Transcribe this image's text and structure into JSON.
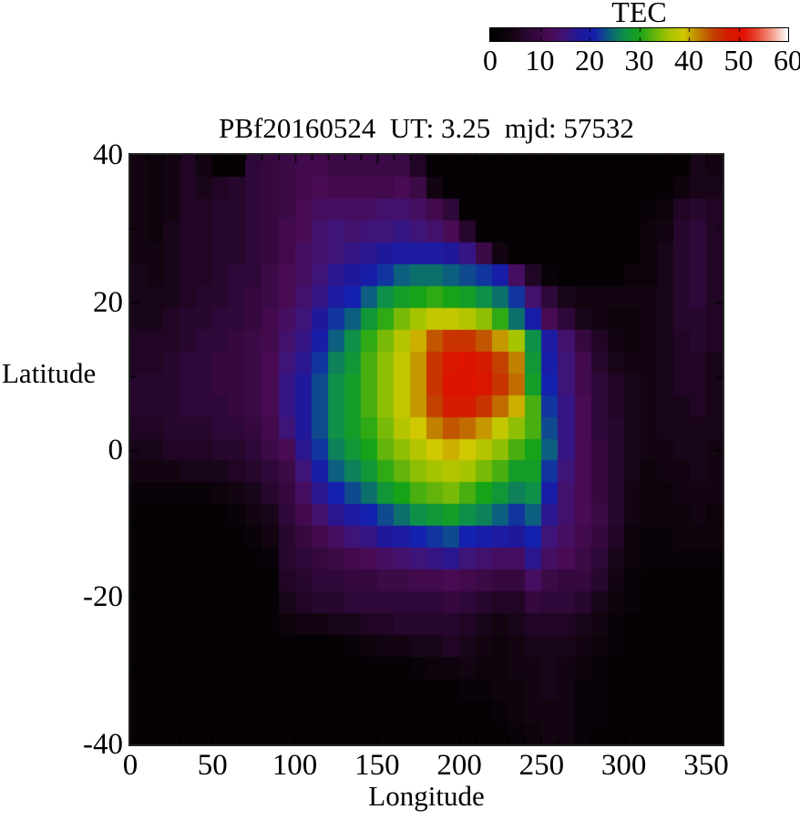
{
  "page": {
    "background": "#ffffff",
    "text_color": "#000000"
  },
  "title": "PBf20160524  UT: 3.25  mjd: 57532",
  "colorbar": {
    "label": "TEC",
    "min": 0,
    "max": 60,
    "tick_labels": [
      "0",
      "10",
      "20",
      "30",
      "40",
      "50",
      "60"
    ],
    "tick_values": [
      0,
      10,
      20,
      30,
      40,
      50,
      60
    ],
    "border_color": "#000000"
  },
  "axes": {
    "x_label": "Longitude",
    "y_label": "Latitude",
    "x_tick_labels": [
      "0",
      "50",
      "100",
      "150",
      "200",
      "250",
      "300",
      "350"
    ],
    "x_tick_values": [
      0,
      50,
      100,
      150,
      200,
      250,
      300,
      350
    ],
    "y_tick_labels": [
      "40",
      "20",
      "0",
      "-20",
      "-40"
    ],
    "y_tick_values": [
      40,
      20,
      0,
      -20,
      -40
    ],
    "x_range": [
      0,
      360
    ],
    "y_range": [
      -40,
      40
    ],
    "border_color": "#242424",
    "tick_color": "#000000"
  },
  "chart_data": {
    "type": "heatmap",
    "title": "PBf20160524  UT: 3.25  mjd: 57532",
    "xlabel": "Longitude",
    "ylabel": "Latitude",
    "value_label": "TEC",
    "value_range": [
      0,
      60
    ],
    "x_range": [
      0,
      360
    ],
    "y_range": [
      -40,
      40
    ],
    "grid_cols": 36,
    "grid_rows": 27,
    "row_order": "north-to-south (lat +40 at top to -40 at bottom), 10 deg per column, ~3 deg per row",
    "values": [
      [
        4,
        3,
        4,
        6,
        4,
        1,
        1,
        8,
        9,
        10,
        11,
        11,
        10,
        10,
        10,
        10,
        10,
        6,
        1,
        1,
        1,
        1,
        1,
        1,
        1,
        1,
        1,
        1,
        1,
        1,
        1,
        1,
        1,
        1,
        5,
        4
      ],
      [
        4,
        3,
        4,
        6,
        5,
        6,
        7,
        8,
        9,
        10,
        11,
        12,
        11,
        11,
        11,
        11,
        12,
        10,
        4,
        1,
        1,
        1,
        1,
        1,
        1,
        1,
        1,
        1,
        1,
        1,
        1,
        1,
        1,
        3,
        5,
        5
      ],
      [
        4,
        3,
        4,
        6,
        6,
        7,
        7,
        8,
        9,
        10,
        12,
        13,
        13,
        13,
        13,
        14,
        14,
        13,
        11,
        8,
        1,
        1,
        1,
        1,
        1,
        1,
        1,
        1,
        1,
        1,
        1,
        2,
        3,
        6,
        7,
        6
      ],
      [
        4,
        3,
        5,
        6,
        6,
        7,
        7,
        8,
        9,
        11,
        12,
        14,
        15,
        14,
        15,
        15,
        16,
        15,
        14,
        12,
        7,
        1,
        1,
        1,
        1,
        1,
        1,
        1,
        1,
        1,
        1,
        3,
        4,
        7,
        8,
        6
      ],
      [
        4,
        4,
        5,
        6,
        6,
        7,
        7,
        8,
        9,
        11,
        13,
        14,
        15,
        16,
        17,
        18,
        19,
        19,
        19,
        18,
        16,
        10,
        4,
        1,
        1,
        1,
        1,
        1,
        1,
        1,
        1,
        3,
        5,
        7,
        8,
        6
      ],
      [
        5,
        4,
        5,
        6,
        6,
        7,
        8,
        8,
        10,
        12,
        13,
        15,
        17,
        18,
        20,
        22,
        24,
        25,
        25,
        24,
        23,
        22,
        20,
        13,
        6,
        2,
        1,
        1,
        1,
        1,
        3,
        3,
        5,
        7,
        8,
        6
      ],
      [
        5,
        5,
        5,
        6,
        7,
        7,
        8,
        9,
        10,
        12,
        14,
        16,
        19,
        21,
        24,
        27,
        29,
        30,
        31,
        30,
        29,
        27,
        25,
        22,
        14,
        8,
        5,
        4,
        4,
        4,
        4,
        4,
        5,
        7,
        8,
        6
      ],
      [
        5,
        5,
        6,
        7,
        7,
        8,
        8,
        9,
        11,
        13,
        15,
        18,
        22,
        24,
        28,
        31,
        34,
        36,
        38,
        38,
        37,
        35,
        31,
        25,
        20,
        12,
        8,
        5,
        4,
        3,
        3,
        4,
        5,
        7,
        7,
        6
      ],
      [
        6,
        6,
        6,
        7,
        8,
        8,
        9,
        10,
        11,
        14,
        16,
        20,
        24,
        27,
        31,
        34,
        37,
        40,
        44,
        46,
        46,
        44,
        41,
        36,
        27,
        19,
        14,
        9,
        6,
        4,
        3,
        4,
        5,
        6,
        7,
        6
      ],
      [
        6,
        6,
        7,
        8,
        8,
        9,
        9,
        10,
        12,
        15,
        17,
        22,
        26,
        28,
        32,
        35,
        38,
        41,
        46,
        49,
        50,
        48,
        45,
        42,
        28,
        20,
        15,
        11,
        7,
        5,
        4,
        4,
        5,
        6,
        6,
        5
      ],
      [
        7,
        7,
        7,
        8,
        8,
        9,
        9,
        10,
        12,
        16,
        18,
        23,
        27,
        29,
        32,
        35,
        38,
        41,
        46,
        50,
        50,
        49,
        46,
        43,
        29,
        21,
        15,
        11,
        8,
        6,
        5,
        4,
        5,
        6,
        6,
        5
      ],
      [
        7,
        7,
        7,
        8,
        8,
        8,
        9,
        10,
        12,
        16,
        18,
        23,
        27,
        29,
        32,
        35,
        38,
        41,
        45,
        48,
        48,
        46,
        43,
        40,
        32,
        22,
        16,
        12,
        8,
        6,
        5,
        4,
        5,
        5,
        6,
        5
      ],
      [
        6,
        6,
        7,
        7,
        7,
        8,
        8,
        9,
        11,
        15,
        18,
        23,
        27,
        29,
        31,
        34,
        37,
        39,
        42,
        44,
        43,
        41,
        38,
        35,
        32,
        23,
        16,
        12,
        8,
        7,
        5,
        4,
        5,
        5,
        5,
        5
      ],
      [
        5,
        5,
        6,
        6,
        6,
        7,
        7,
        8,
        10,
        12,
        17,
        22,
        26,
        28,
        30,
        33,
        35,
        37,
        39,
        40,
        39,
        37,
        35,
        32,
        30,
        24,
        16,
        12,
        9,
        7,
        5,
        4,
        4,
        5,
        5,
        4
      ],
      [
        4,
        4,
        4,
        5,
        5,
        5,
        6,
        7,
        8,
        10,
        15,
        20,
        24,
        26,
        28,
        31,
        33,
        35,
        36,
        37,
        36,
        34,
        32,
        29,
        29,
        22,
        15,
        12,
        9,
        7,
        5,
        3,
        4,
        4,
        5,
        4
      ],
      [
        2,
        2,
        2,
        2,
        2,
        3,
        4,
        5,
        7,
        9,
        13,
        17,
        21,
        23,
        25,
        28,
        30,
        32,
        33,
        34,
        32,
        30,
        28,
        26,
        27,
        20,
        14,
        12,
        9,
        7,
        4,
        3,
        3,
        4,
        4,
        4
      ],
      [
        1,
        1,
        1,
        1,
        1,
        1,
        2,
        4,
        5,
        8,
        11,
        14,
        17,
        19,
        21,
        23,
        25,
        27,
        28,
        29,
        27,
        26,
        24,
        22,
        24,
        17,
        14,
        12,
        10,
        7,
        4,
        3,
        3,
        3,
        4,
        3
      ],
      [
        1,
        1,
        1,
        1,
        1,
        1,
        1,
        2,
        4,
        7,
        9,
        11,
        13,
        15,
        16,
        18,
        19,
        21,
        22,
        23,
        21,
        20,
        19,
        18,
        21,
        15,
        13,
        11,
        9,
        6,
        3,
        2,
        2,
        3,
        3,
        3
      ],
      [
        1,
        1,
        1,
        1,
        1,
        1,
        1,
        1,
        2,
        7,
        8,
        9,
        10,
        11,
        12,
        13,
        14,
        15,
        16,
        17,
        15,
        14,
        13,
        13,
        17,
        13,
        12,
        10,
        8,
        5,
        3,
        2,
        2,
        2,
        2,
        2
      ],
      [
        1,
        1,
        1,
        1,
        1,
        1,
        1,
        1,
        1,
        6,
        7,
        8,
        8,
        9,
        9,
        10,
        10,
        11,
        11,
        12,
        11,
        10,
        9,
        9,
        13,
        10,
        9,
        9,
        7,
        4,
        2,
        1,
        1,
        1,
        1,
        1
      ],
      [
        1,
        1,
        1,
        1,
        1,
        1,
        1,
        1,
        1,
        5,
        6,
        7,
        7,
        8,
        8,
        8,
        8,
        8,
        8,
        9,
        8,
        7,
        6,
        6,
        9,
        8,
        8,
        7,
        5,
        3,
        2,
        1,
        1,
        1,
        1,
        1
      ],
      [
        1,
        1,
        1,
        1,
        1,
        1,
        1,
        1,
        1,
        3,
        4,
        4,
        5,
        5,
        6,
        6,
        7,
        7,
        7,
        7,
        6,
        5,
        4,
        5,
        6,
        6,
        6,
        5,
        4,
        2,
        1,
        1,
        1,
        1,
        1,
        1
      ],
      [
        1,
        1,
        1,
        1,
        1,
        1,
        1,
        1,
        1,
        1,
        1,
        1,
        1,
        2,
        3,
        4,
        4,
        5,
        5,
        6,
        5,
        4,
        3,
        4,
        5,
        5,
        5,
        4,
        3,
        2,
        1,
        1,
        1,
        1,
        1,
        1
      ],
      [
        1,
        1,
        1,
        1,
        1,
        1,
        1,
        1,
        1,
        1,
        1,
        1,
        1,
        1,
        1,
        1,
        1,
        2,
        3,
        3,
        4,
        3,
        3,
        4,
        4,
        5,
        4,
        3,
        2,
        1,
        1,
        1,
        1,
        1,
        1,
        1
      ],
      [
        1,
        1,
        1,
        1,
        1,
        1,
        1,
        1,
        1,
        1,
        1,
        1,
        1,
        1,
        1,
        1,
        1,
        1,
        1,
        1,
        2,
        2,
        3,
        3,
        4,
        5,
        4,
        2,
        2,
        1,
        1,
        1,
        1,
        1,
        1,
        1
      ],
      [
        1,
        1,
        1,
        1,
        1,
        1,
        1,
        1,
        1,
        1,
        1,
        1,
        1,
        1,
        1,
        1,
        1,
        1,
        1,
        1,
        1,
        1,
        2,
        3,
        4,
        4,
        4,
        2,
        2,
        1,
        1,
        1,
        1,
        1,
        1,
        1
      ],
      [
        1,
        1,
        1,
        1,
        1,
        1,
        1,
        1,
        1,
        1,
        1,
        1,
        1,
        1,
        1,
        1,
        1,
        1,
        1,
        1,
        1,
        1,
        1,
        2,
        3,
        4,
        4,
        2,
        1,
        1,
        1,
        1,
        1,
        1,
        1,
        1
      ]
    ],
    "colormap_stops": [
      [
        0,
        "#000000"
      ],
      [
        4,
        "#120410"
      ],
      [
        8,
        "#2e0838"
      ],
      [
        12,
        "#490b54"
      ],
      [
        15,
        "#3f1478"
      ],
      [
        18,
        "#20189a"
      ],
      [
        21,
        "#1420ae"
      ],
      [
        24,
        "#0c5f7e"
      ],
      [
        27,
        "#0f9048"
      ],
      [
        30,
        "#16a318"
      ],
      [
        33,
        "#62b40c"
      ],
      [
        36,
        "#a6c400"
      ],
      [
        39,
        "#d0c800"
      ],
      [
        42,
        "#c08000"
      ],
      [
        45,
        "#c24000"
      ],
      [
        48,
        "#d41a00"
      ],
      [
        51,
        "#e21000"
      ],
      [
        54,
        "#e84c36"
      ],
      [
        57,
        "#f5a08e"
      ],
      [
        60,
        "#ffffff"
      ]
    ],
    "legend_position": "top-right colorbar",
    "grid_lines": false
  }
}
